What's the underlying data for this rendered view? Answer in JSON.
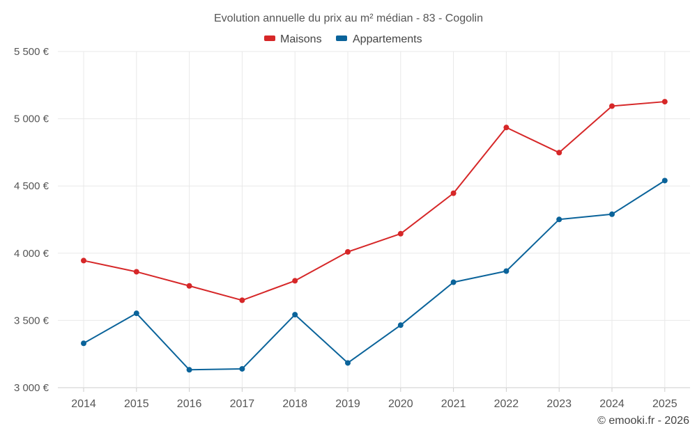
{
  "chart_data": {
    "type": "line",
    "title": "Evolution annuelle du prix au m² médian - 83 - Cogolin",
    "categories": [
      "2014",
      "2015",
      "2016",
      "2017",
      "2018",
      "2019",
      "2020",
      "2021",
      "2022",
      "2023",
      "2024",
      "2025"
    ],
    "series": [
      {
        "name": "Maisons",
        "color": "#d62728",
        "values": [
          3945,
          3862,
          3757,
          3650,
          3795,
          4010,
          4145,
          4446,
          4935,
          4748,
          5094,
          5127
        ]
      },
      {
        "name": "Appartements",
        "color": "#0a639a",
        "values": [
          3330,
          3553,
          3133,
          3140,
          3543,
          3184,
          3465,
          3784,
          3867,
          4251,
          4290,
          4540
        ]
      }
    ],
    "ylim": [
      3000,
      5500
    ],
    "yticks": [
      3000,
      3500,
      4000,
      4500,
      5000,
      5500
    ],
    "ytick_labels": [
      "3 000 €",
      "3 500 €",
      "4 000 €",
      "4 500 €",
      "5 000 €",
      "5 500 €"
    ],
    "legend_position": "top-center",
    "grid": true
  },
  "credit": "© emooki.fr - 2026"
}
